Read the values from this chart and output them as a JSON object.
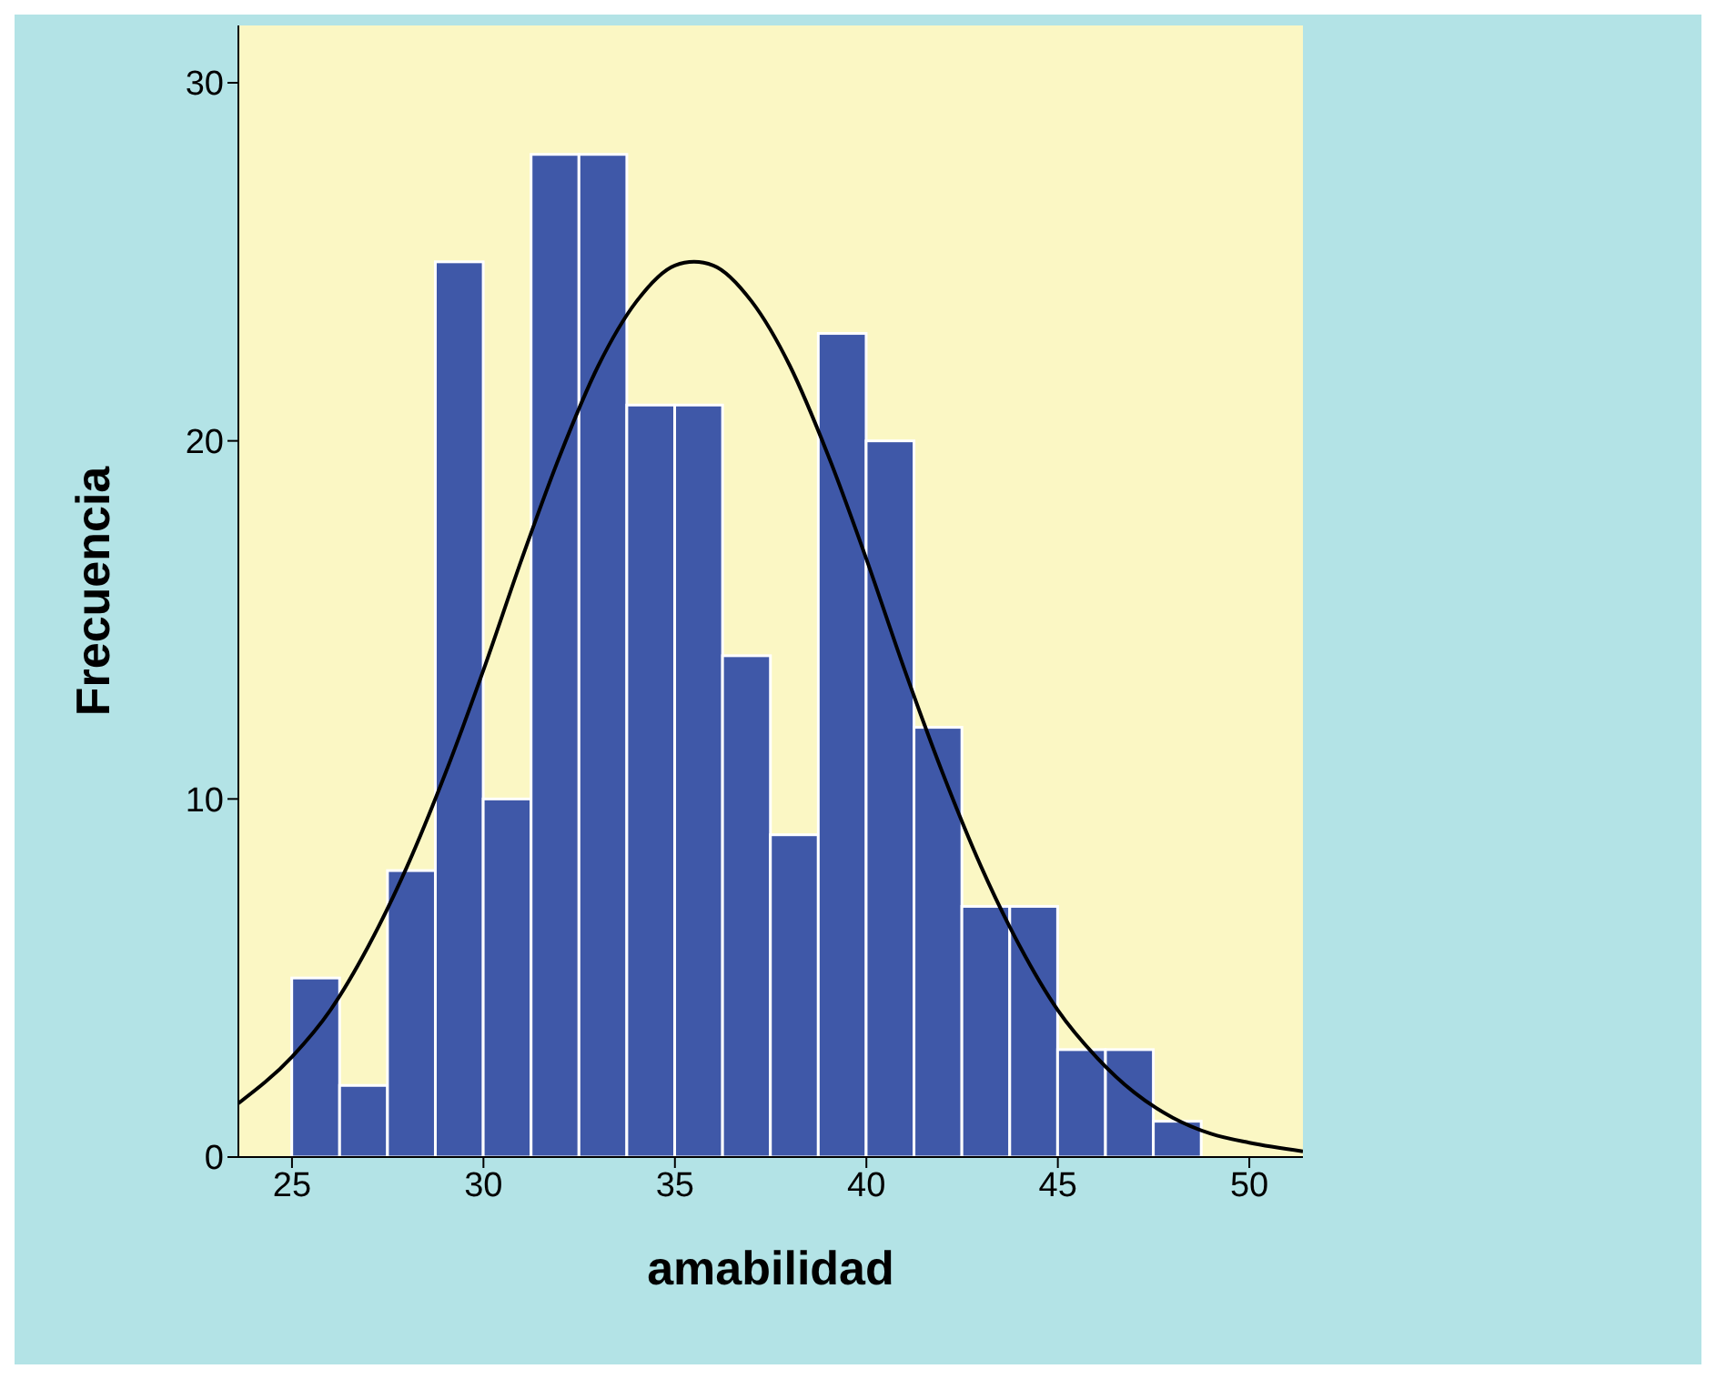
{
  "chart_data": {
    "type": "histogram",
    "xlabel": "amabilidad",
    "ylabel": "Frecuencia",
    "bins": [
      25,
      26.25,
      27.5,
      28.75,
      30,
      31.25,
      32.5,
      33.75,
      35,
      36.25,
      37.5,
      38.75,
      40,
      41.25,
      42.5,
      43.75,
      45,
      46.25,
      47.5,
      48.75
    ],
    "values": [
      5,
      2,
      8,
      25,
      10,
      28,
      28,
      21,
      21,
      14,
      9,
      23,
      20,
      12,
      7,
      7,
      3,
      3,
      1
    ],
    "color": "#3f58a8",
    "series": [
      {
        "type": "line",
        "color": "#000000",
        "x": [
          23.6,
          25,
          26,
          27,
          28,
          29,
          30,
          31,
          32,
          33,
          34,
          35,
          35.5,
          36,
          37,
          38,
          39,
          40,
          41,
          42,
          43,
          44,
          45,
          46,
          47,
          48,
          49,
          50,
          51.4
        ],
        "values": [
          1.5,
          2.8,
          4.1,
          5.9,
          8.1,
          10.7,
          13.6,
          16.7,
          19.6,
          22.1,
          23.9,
          24.9,
          25,
          24.9,
          23.9,
          22.1,
          19.6,
          16.7,
          13.6,
          10.7,
          8.1,
          5.9,
          4.1,
          2.8,
          1.8,
          1.1,
          0.65,
          0.4,
          0.16
        ]
      }
    ],
    "xlim": [
      23.6,
      51.4
    ],
    "xticks": [
      25,
      30,
      35,
      40,
      45,
      50
    ],
    "ylim": [
      0,
      31.6
    ],
    "yticks": [
      0,
      10,
      20,
      30
    ],
    "grid": false,
    "marker": "none",
    "line_style": "solid"
  }
}
